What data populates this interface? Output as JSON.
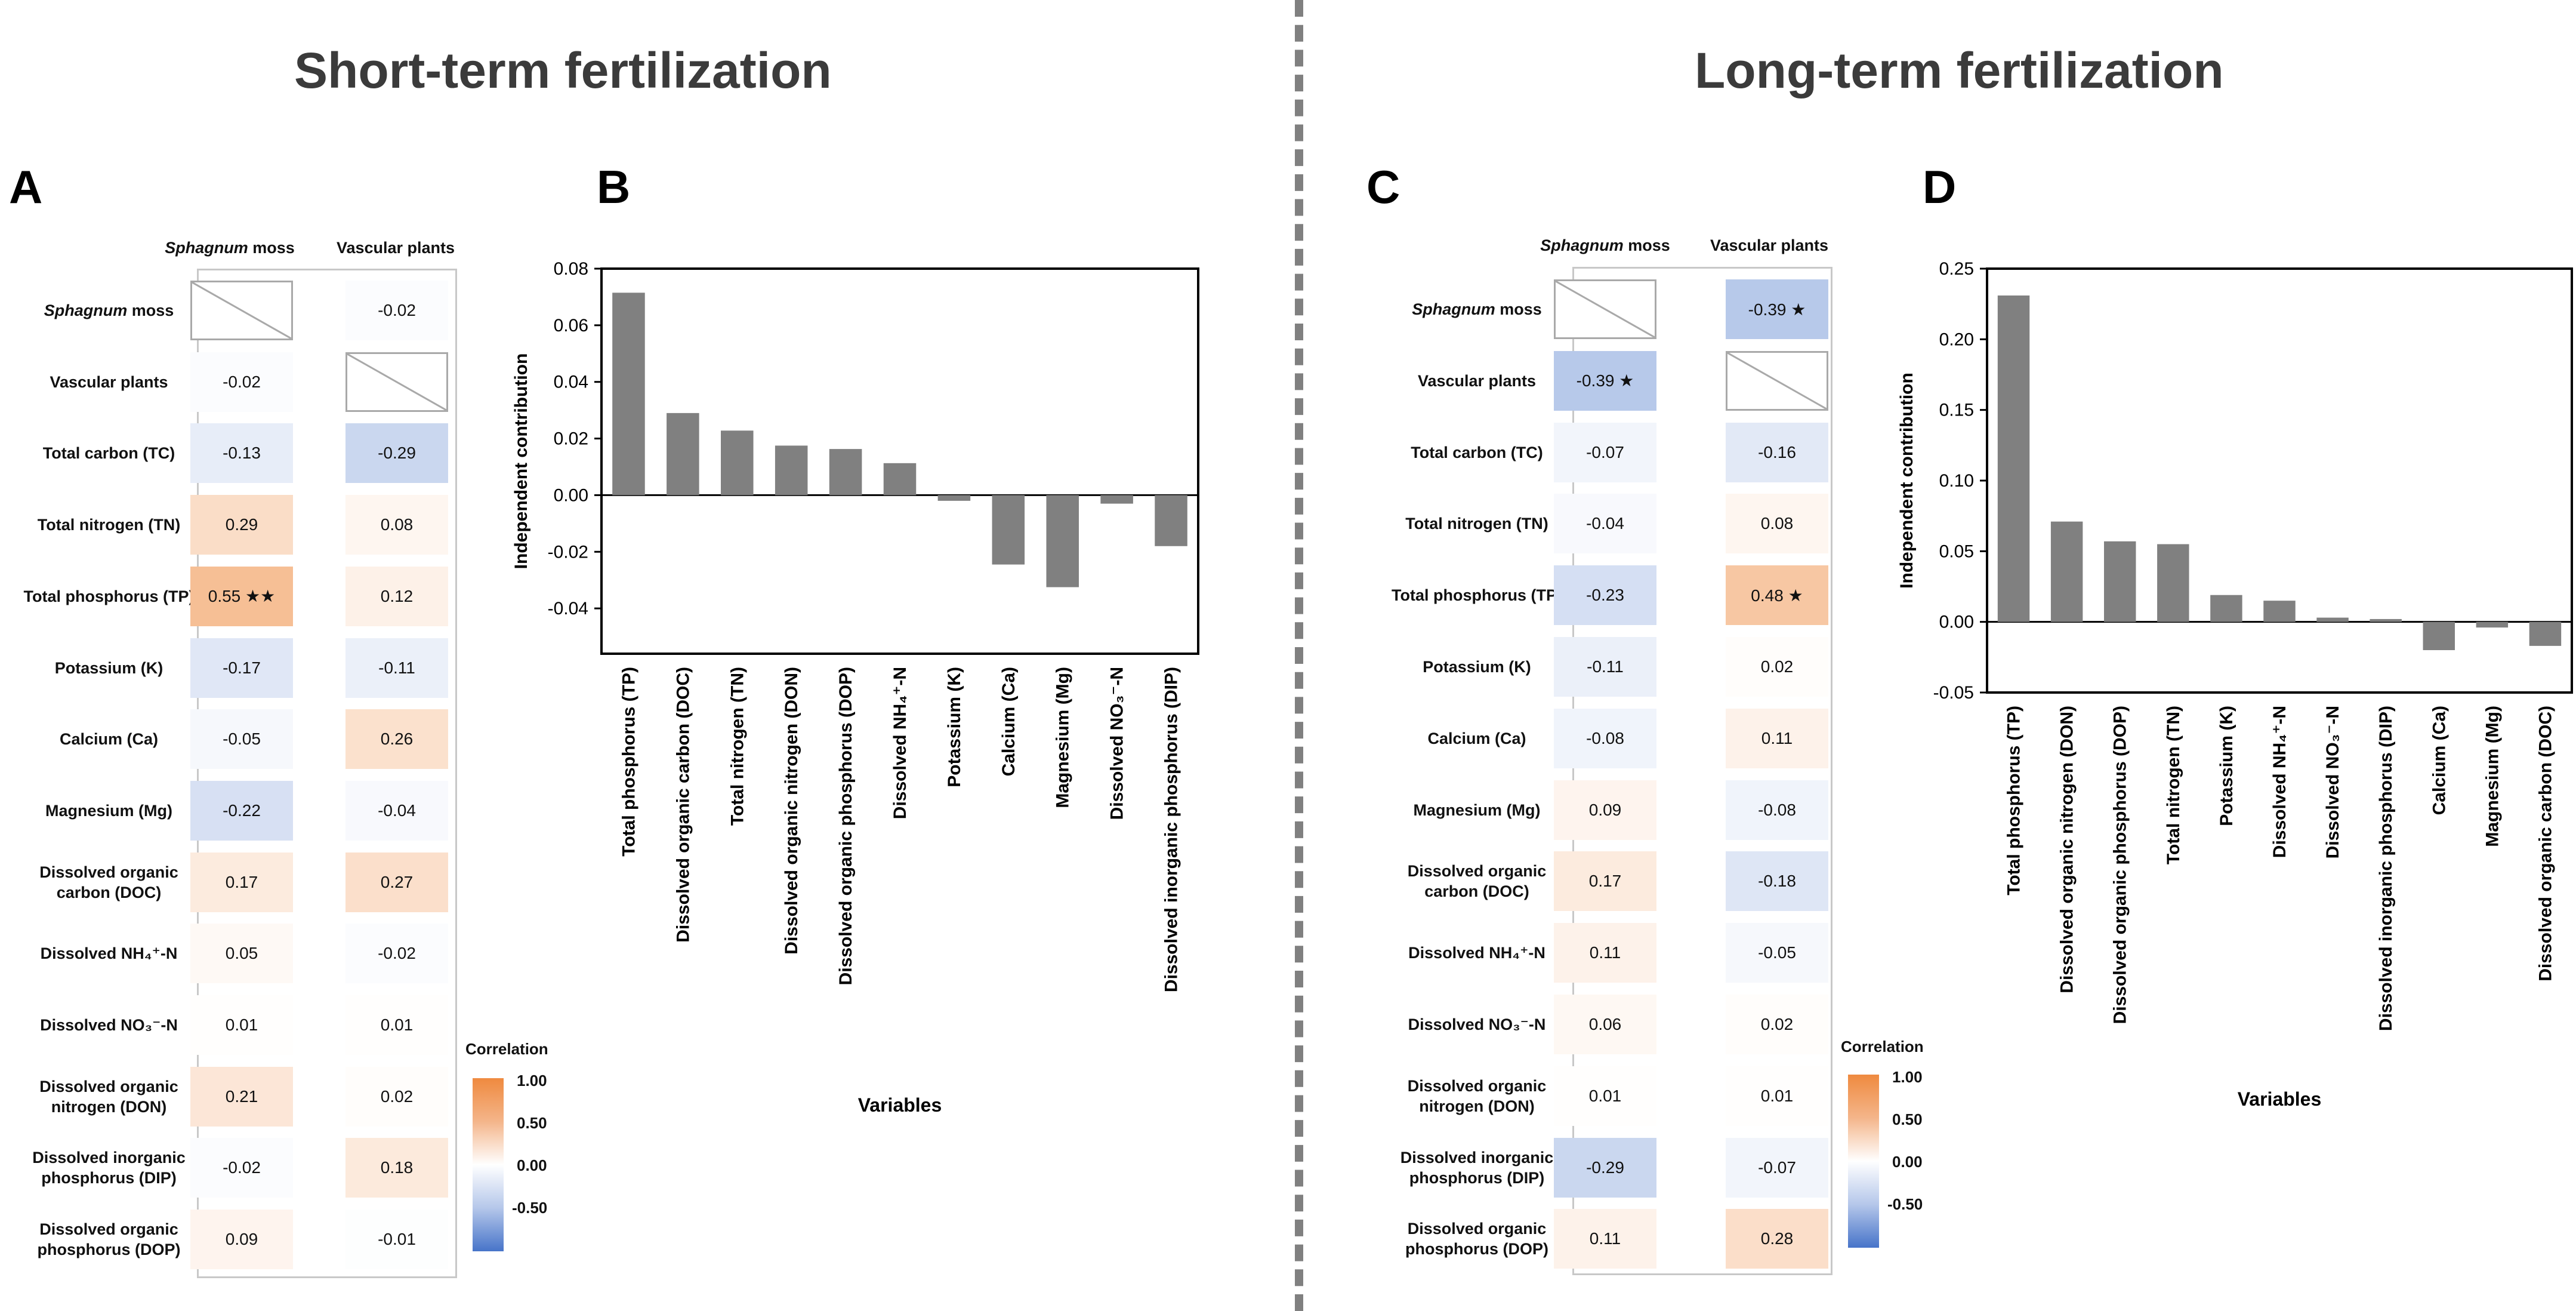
{
  "titles": {
    "short": "Short-term fertilization",
    "long": "Long-term fertilization"
  },
  "panels": {
    "a": "A",
    "b": "B",
    "c": "C",
    "d": "D"
  },
  "colors": {
    "bar": "#808080",
    "positive": "#ef8a3f",
    "negative": "#4774c9",
    "divider": "#808080"
  },
  "colorbar": {
    "title": "Correlation",
    "ticks": [
      "1.00",
      "0.50",
      "0.00",
      "-0.50"
    ]
  },
  "heatmap_columns": {
    "sphagnum_italic": "Sphagnum",
    "sphagnum_rest": " moss",
    "vascular": "Vascular plants"
  },
  "chart_data": [
    {
      "id": "A",
      "type": "heatmap",
      "columns": [
        "Sphagnum moss",
        "Vascular plants"
      ],
      "rows": [
        {
          "label": [
            "Sphagnum moss"
          ],
          "italic": true,
          "values": [
            null,
            -0.02
          ],
          "text": [
            "",
            "-0.02"
          ]
        },
        {
          "label": [
            "Vascular plants"
          ],
          "values": [
            -0.02,
            null
          ],
          "text": [
            "-0.02",
            ""
          ]
        },
        {
          "label": [
            "Total carbon (TC)"
          ],
          "values": [
            -0.13,
            -0.29
          ],
          "text": [
            "-0.13",
            "-0.29"
          ]
        },
        {
          "label": [
            "Total nitrogen (TN)"
          ],
          "values": [
            0.29,
            0.08
          ],
          "text": [
            "0.29",
            "0.08"
          ]
        },
        {
          "label": [
            "Total phosphorus (TP)"
          ],
          "values": [
            0.55,
            0.12
          ],
          "text": [
            "0.55 ★★",
            "0.12"
          ]
        },
        {
          "label": [
            "Potassium (K)"
          ],
          "values": [
            -0.17,
            -0.11
          ],
          "text": [
            "-0.17",
            "-0.11"
          ]
        },
        {
          "label": [
            "Calcium (Ca)"
          ],
          "values": [
            -0.05,
            0.26
          ],
          "text": [
            "-0.05",
            "0.26"
          ]
        },
        {
          "label": [
            "Magnesium (Mg)"
          ],
          "values": [
            -0.22,
            -0.04
          ],
          "text": [
            "-0.22",
            "-0.04"
          ]
        },
        {
          "label": [
            "Dissolved organic",
            "carbon (DOC)"
          ],
          "values": [
            0.17,
            0.27
          ],
          "text": [
            "0.17",
            "0.27"
          ]
        },
        {
          "label": [
            "Dissolved NH₄⁺-N"
          ],
          "values": [
            0.05,
            -0.02
          ],
          "text": [
            "0.05",
            "-0.02"
          ]
        },
        {
          "label": [
            "Dissolved NO₃⁻-N"
          ],
          "values": [
            0.01,
            0.01
          ],
          "text": [
            "0.01",
            "0.01"
          ]
        },
        {
          "label": [
            "Dissolved organic",
            "nitrogen (DON)"
          ],
          "values": [
            0.21,
            0.02
          ],
          "text": [
            "0.21",
            "0.02"
          ]
        },
        {
          "label": [
            "Dissolved inorganic",
            "phosphorus (DIP)"
          ],
          "values": [
            -0.02,
            0.18
          ],
          "text": [
            "-0.02",
            "0.18"
          ]
        },
        {
          "label": [
            "Dissolved organic",
            "phosphorus (DOP)"
          ],
          "values": [
            0.09,
            -0.01
          ],
          "text": [
            "0.09",
            "-0.01"
          ]
        }
      ],
      "color_range": [
        -1,
        1
      ],
      "legend_title": "Correlation"
    },
    {
      "id": "B",
      "type": "bar",
      "categories": [
        "Total phosphorus (TP)",
        "Dissolved organic carbon (DOC)",
        "Total nitrogen (TN)",
        "Dissolved organic nitrogen (DON)",
        "Dissolved organic phosphorus (DOP)",
        "Dissolved NH₄⁺-N",
        "Potassium (K)",
        "Calcium (Ca)",
        "Magnesium (Mg)",
        "Dissolved NO₃⁻-N",
        "Dissolved inorganic phosphorus (DIP)"
      ],
      "values": [
        0.0715,
        0.029,
        0.0228,
        0.0175,
        0.0163,
        0.0113,
        -0.002,
        -0.0245,
        -0.0325,
        -0.003,
        -0.018
      ],
      "xlabel": "Variables",
      "ylabel": "Independent contribution",
      "ylim": [
        -0.056,
        0.08
      ],
      "yticks": [
        "0.08",
        "0.06",
        "0.04",
        "0.02",
        "0.00",
        "-0.02",
        "-0.04"
      ],
      "ytick_values": [
        0.08,
        0.06,
        0.04,
        0.02,
        0,
        -0.02,
        -0.04
      ]
    },
    {
      "id": "C",
      "type": "heatmap",
      "columns": [
        "Sphagnum moss",
        "Vascular plants"
      ],
      "rows": [
        {
          "label": [
            "Sphagnum moss"
          ],
          "italic": true,
          "values": [
            null,
            -0.39
          ],
          "text": [
            "",
            "-0.39 ★"
          ]
        },
        {
          "label": [
            "Vascular plants"
          ],
          "values": [
            -0.39,
            null
          ],
          "text": [
            "-0.39 ★",
            ""
          ]
        },
        {
          "label": [
            "Total carbon (TC)"
          ],
          "values": [
            -0.07,
            -0.16
          ],
          "text": [
            "-0.07",
            "-0.16"
          ]
        },
        {
          "label": [
            "Total nitrogen (TN)"
          ],
          "values": [
            -0.04,
            0.08
          ],
          "text": [
            "-0.04",
            "0.08"
          ]
        },
        {
          "label": [
            "Total phosphorus (TP)"
          ],
          "values": [
            -0.23,
            0.48
          ],
          "text": [
            "-0.23",
            "0.48 ★"
          ]
        },
        {
          "label": [
            "Potassium (K)"
          ],
          "values": [
            -0.11,
            0.02
          ],
          "text": [
            "-0.11",
            "0.02"
          ]
        },
        {
          "label": [
            "Calcium (Ca)"
          ],
          "values": [
            -0.08,
            0.11
          ],
          "text": [
            "-0.08",
            "0.11"
          ]
        },
        {
          "label": [
            "Magnesium (Mg)"
          ],
          "values": [
            0.09,
            -0.08
          ],
          "text": [
            "0.09",
            "-0.08"
          ]
        },
        {
          "label": [
            "Dissolved organic",
            "carbon (DOC)"
          ],
          "values": [
            0.17,
            -0.18
          ],
          "text": [
            "0.17",
            "-0.18"
          ]
        },
        {
          "label": [
            "Dissolved NH₄⁺-N"
          ],
          "values": [
            0.11,
            -0.05
          ],
          "text": [
            "0.11",
            "-0.05"
          ]
        },
        {
          "label": [
            "Dissolved NO₃⁻-N"
          ],
          "values": [
            0.06,
            0.02
          ],
          "text": [
            "0.06",
            "0.02"
          ]
        },
        {
          "label": [
            "Dissolved organic",
            "nitrogen (DON)"
          ],
          "values": [
            0.01,
            0.01
          ],
          "text": [
            "0.01",
            "0.01"
          ]
        },
        {
          "label": [
            "Dissolved inorganic",
            "phosphorus (DIP)"
          ],
          "values": [
            -0.29,
            -0.07
          ],
          "text": [
            "-0.29",
            "-0.07"
          ]
        },
        {
          "label": [
            "Dissolved organic",
            "phosphorus (DOP)"
          ],
          "values": [
            0.11,
            0.28
          ],
          "text": [
            "0.11",
            "0.28"
          ]
        }
      ],
      "color_range": [
        -1,
        1
      ],
      "legend_title": "Correlation"
    },
    {
      "id": "D",
      "type": "bar",
      "categories": [
        "Total phosphorus (TP)",
        "Dissolved organic nitrogen (DON)",
        "Dissolved organic phosphorus (DOP)",
        "Total nitrogen (TN)",
        "Potassium (K)",
        "Dissolved NH₄⁺-N",
        "Dissolved NO₃⁻-N",
        "Dissolved inorganic phosphorus (DIP)",
        "Calcium (Ca)",
        "Magnesium (Mg)",
        "Dissolved organic carbon (DOC)"
      ],
      "values": [
        0.231,
        0.071,
        0.057,
        0.055,
        0.019,
        0.015,
        0.003,
        0.002,
        -0.02,
        -0.004,
        -0.017
      ],
      "xlabel": "Variables",
      "ylabel": "Independent contribution",
      "ylim": [
        -0.05,
        0.25
      ],
      "yticks": [
        "0.25",
        "0.20",
        "0.15",
        "0.10",
        "0.05",
        "0.00",
        "-0.05"
      ],
      "ytick_values": [
        0.25,
        0.2,
        0.15,
        0.1,
        0.05,
        0,
        -0.05
      ]
    }
  ]
}
